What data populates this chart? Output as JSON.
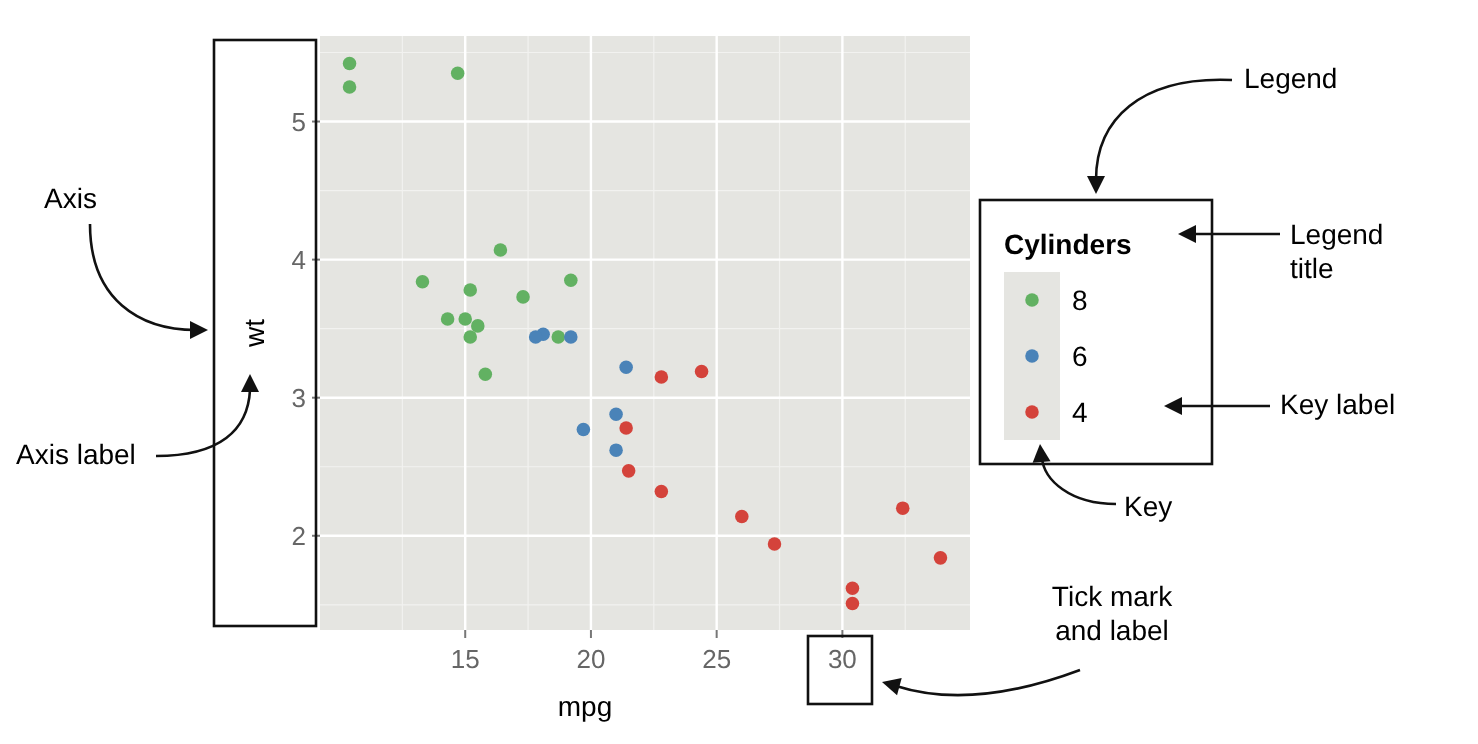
{
  "chart_data": {
    "type": "scatter",
    "xlabel": "mpg",
    "ylabel": "wt",
    "legend_title": "Cylinders",
    "legend": "right",
    "grid": true,
    "marker": "circle",
    "xlim": [
      9.225,
      35.075
    ],
    "ylim": [
      1.3175,
      5.6195
    ],
    "xticks": [
      15,
      20,
      25,
      30
    ],
    "yticks": [
      2,
      3,
      4,
      5
    ],
    "series": [
      {
        "name": "8",
        "color": "#62b162",
        "x": [
          18.7,
          14.3,
          16.4,
          17.3,
          15.2,
          10.4,
          10.4,
          14.7,
          15.5,
          15.2,
          13.3,
          19.2,
          15.8,
          15.0
        ],
        "values": [
          3.44,
          3.57,
          4.07,
          3.73,
          3.78,
          5.25,
          5.42,
          5.35,
          3.52,
          3.44,
          3.84,
          3.85,
          3.17,
          3.57
        ]
      },
      {
        "name": "6",
        "color": "#4a83b8",
        "x": [
          21.0,
          21.0,
          21.4,
          18.1,
          19.2,
          17.8,
          19.7
        ],
        "values": [
          2.62,
          2.88,
          3.22,
          3.46,
          3.44,
          3.44,
          2.77
        ]
      },
      {
        "name": "4",
        "color": "#d4433b",
        "x": [
          22.8,
          24.4,
          22.8,
          32.4,
          30.4,
          33.9,
          21.5,
          27.3,
          26.0,
          30.4,
          21.4
        ],
        "values": [
          2.32,
          3.19,
          3.15,
          2.2,
          1.62,
          1.84,
          2.47,
          1.94,
          2.14,
          1.51,
          2.78
        ]
      }
    ],
    "annotations": [
      "Axis",
      "Axis label",
      "Legend",
      "Legend title",
      "Key label",
      "Key",
      "Tick mark and label"
    ]
  }
}
